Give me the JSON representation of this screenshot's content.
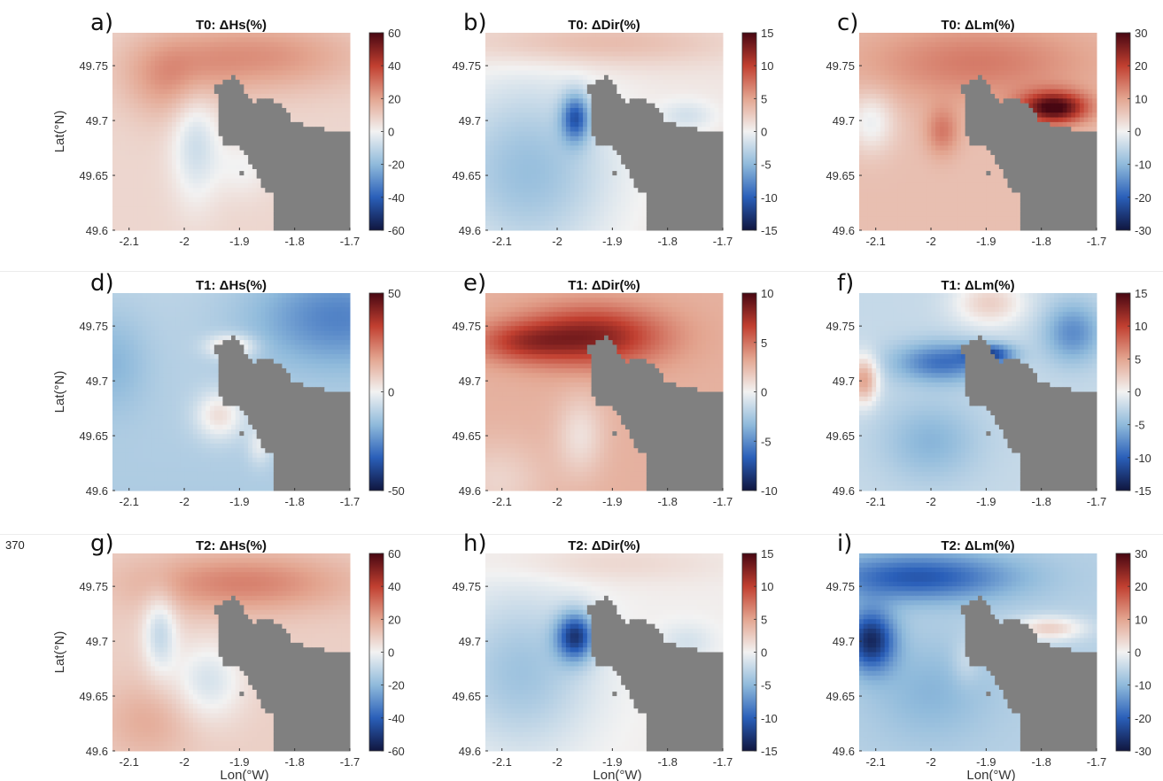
{
  "page": {
    "line_number": "370"
  },
  "figure": {
    "x_label": "Lon(°W)",
    "y_label": "Lat(°N)",
    "x_ticks": [
      "-2.1",
      "-2",
      "-1.9",
      "-1.8",
      "-1.7"
    ],
    "y_ticks": [
      "49.6",
      "49.65",
      "49.7",
      "49.75"
    ],
    "xlim": [
      -2.13,
      -1.7
    ],
    "ylim": [
      49.6,
      49.78
    ],
    "land_color": "#808080",
    "colormap": [
      "#10163f",
      "#2a5fb9",
      "#8fbadb",
      "#f2f2f2",
      "#e3a590",
      "#c13f30",
      "#480712"
    ]
  },
  "chart_data": [
    {
      "panel": "a)",
      "title": "T0: ΔHs(%)",
      "type": "heatmap",
      "clim": [
        -60,
        60
      ],
      "cbar_ticks": [
        "60",
        "40",
        "20",
        "0",
        "-20",
        "-40",
        "-60"
      ]
    },
    {
      "panel": "b)",
      "title": "T0: ΔDir(%)",
      "type": "heatmap",
      "clim": [
        -15,
        15
      ],
      "cbar_ticks": [
        "15",
        "10",
        "5",
        "0",
        "-5",
        "-10",
        "-15"
      ]
    },
    {
      "panel": "c)",
      "title": "T0: ΔLm(%)",
      "type": "heatmap",
      "clim": [
        -30,
        30
      ],
      "cbar_ticks": [
        "30",
        "20",
        "10",
        "0",
        "-10",
        "-20",
        "-30"
      ]
    },
    {
      "panel": "d)",
      "title": "T1: ΔHs(%)",
      "type": "heatmap",
      "clim": [
        -50,
        50
      ],
      "cbar_ticks": [
        "50",
        "0",
        "-50"
      ]
    },
    {
      "panel": "e)",
      "title": "T1: ΔDir(%)",
      "type": "heatmap",
      "clim": [
        -10,
        10
      ],
      "cbar_ticks": [
        "10",
        "5",
        "0",
        "-5",
        "-10"
      ]
    },
    {
      "panel": "f)",
      "title": "T1: ΔLm(%)",
      "type": "heatmap",
      "clim": [
        -15,
        15
      ],
      "cbar_ticks": [
        "15",
        "10",
        "5",
        "0",
        "-5",
        "-10",
        "-15"
      ]
    },
    {
      "panel": "g)",
      "title": "T2: ΔHs(%)",
      "type": "heatmap",
      "clim": [
        -60,
        60
      ],
      "cbar_ticks": [
        "60",
        "40",
        "20",
        "0",
        "-20",
        "-40",
        "-60"
      ]
    },
    {
      "panel": "h)",
      "title": "T2: ΔDir(%)",
      "type": "heatmap",
      "clim": [
        -15,
        15
      ],
      "cbar_ticks": [
        "15",
        "10",
        "5",
        "0",
        "-5",
        "-10",
        "-15"
      ]
    },
    {
      "panel": "i)",
      "title": "T2: ΔLm(%)",
      "type": "heatmap",
      "clim": [
        -30,
        30
      ],
      "cbar_ticks": [
        "30",
        "20",
        "10",
        "0",
        "-10",
        "-20",
        "-30"
      ]
    }
  ]
}
